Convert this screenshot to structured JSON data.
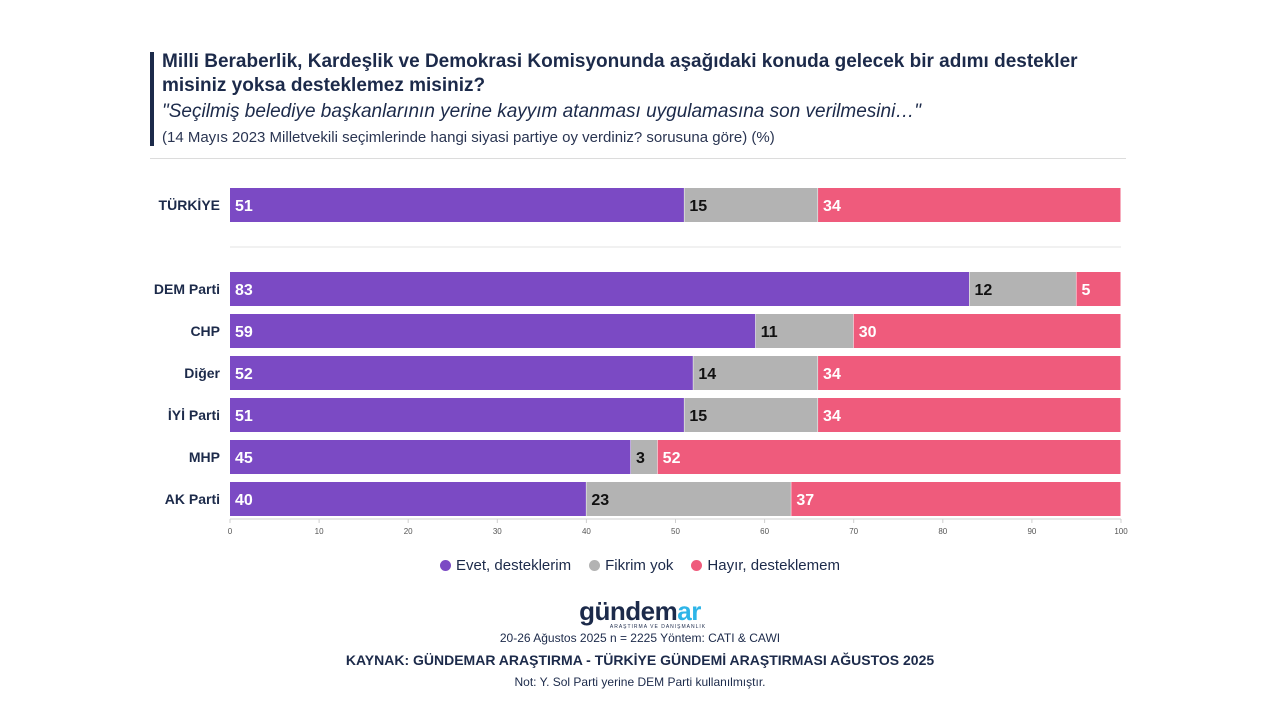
{
  "header": {
    "title": "Milli Beraberlik, Kardeşlik ve Demokrasi Komisyonunda aşağıdaki konuda gelecek bir adımı destekler misiniz yoksa desteklemez misiniz?",
    "subtitle": "\"Seçilmiş belediye başkanlarının yerine kayyım atanması uygulamasına son verilmesini…\"",
    "note": "(14 Mayıs 2023 Milletvekili seçimlerinde hangi siyasi partiye oy verdiniz? sorusuna göre) (%)"
  },
  "chart_data": {
    "type": "bar",
    "orientation": "horizontal",
    "stacked": true,
    "categories": [
      "TÜRKİYE",
      "DEM Parti",
      "CHP",
      "Diğer",
      "İYİ Parti",
      "MHP",
      "AK Parti"
    ],
    "series": [
      {
        "name": "Evet, desteklerim",
        "color": "#7b4ac4",
        "values": [
          51,
          83,
          59,
          52,
          51,
          45,
          40
        ]
      },
      {
        "name": "Fikrim yok",
        "color": "#b3b3b3",
        "values": [
          15,
          12,
          11,
          14,
          15,
          3,
          23
        ]
      },
      {
        "name": "Hayır, desteklemem",
        "color": "#ef5b7c",
        "values": [
          34,
          5,
          30,
          34,
          34,
          52,
          37
        ]
      }
    ],
    "xlim": [
      0,
      100
    ],
    "xticks": [
      "0",
      "10",
      "20",
      "30",
      "40",
      "50",
      "60",
      "70",
      "80",
      "90",
      "100"
    ],
    "legend_position": "bottom"
  },
  "logo": {
    "word_main": "gündem",
    "word_accent": "ar",
    "tagline": "ARAŞTIRMA VE DANIŞMANLIK"
  },
  "footer": {
    "line1": "20-26 Ağustos 2025 n = 2225 Yöntem: CATI & CAWI",
    "line2": "KAYNAK: GÜNDEMAR ARAŞTIRMA - TÜRKİYE GÜNDEMİ ARAŞTIRMASI AĞUSTOS 2025",
    "line3": "Not: Y. Sol Parti yerine DEM Parti kullanılmıştır."
  }
}
